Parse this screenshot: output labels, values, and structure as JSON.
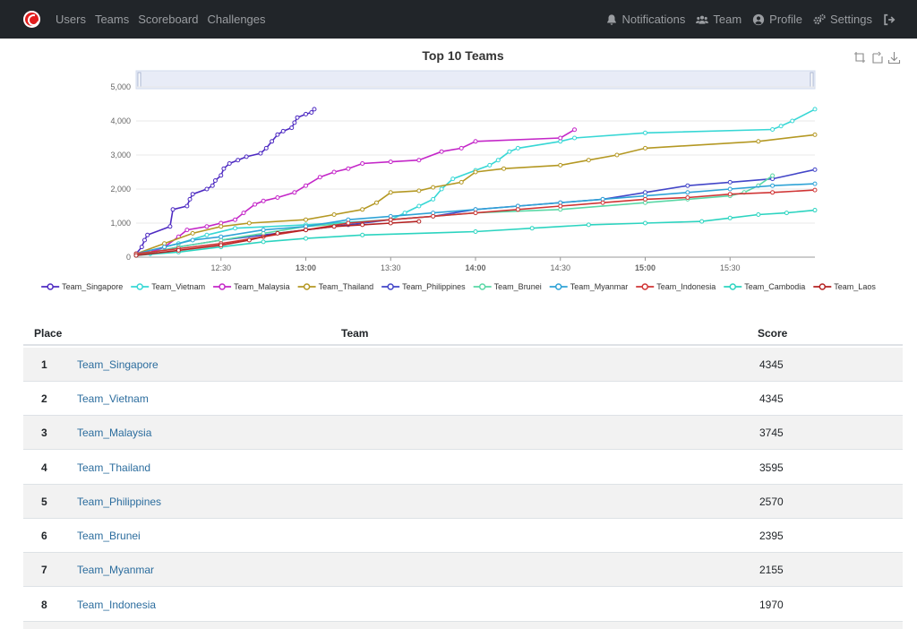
{
  "nav": {
    "left": [
      "Users",
      "Teams",
      "Scoreboard",
      "Challenges"
    ],
    "notifications": "Notifications",
    "team": "Team",
    "profile": "Profile",
    "settings": "Settings"
  },
  "colors": {
    "navbar": "#212529",
    "brand": "#e31d1d",
    "link": "#2c6d9e"
  },
  "chart_data": {
    "type": "line",
    "title": "Top 10 Teams",
    "x_axis": {
      "ticks": [
        "12:30",
        "13:00",
        "13:30",
        "14:00",
        "14:30",
        "15:00",
        "15:30"
      ],
      "range": [
        "12:00",
        "16:00"
      ]
    },
    "y_axis": {
      "ticks": [
        "0",
        "1,000",
        "2,000",
        "3,000",
        "4,000",
        "5,000"
      ],
      "range": [
        0,
        5000
      ]
    },
    "grid": "horizontal",
    "legend_position": "bottom",
    "datazoom_slider": true,
    "series": [
      {
        "name": "Team_Singapore",
        "color": "#4e2bc2",
        "points": [
          [
            "12:00",
            100
          ],
          [
            "12:02",
            300
          ],
          [
            "12:03",
            500
          ],
          [
            "12:04",
            650
          ],
          [
            "12:12",
            900
          ],
          [
            "12:13",
            1400
          ],
          [
            "12:18",
            1500
          ],
          [
            "12:19",
            1700
          ],
          [
            "12:20",
            1850
          ],
          [
            "12:25",
            2000
          ],
          [
            "12:27",
            2100
          ],
          [
            "12:28",
            2250
          ],
          [
            "12:30",
            2400
          ],
          [
            "12:31",
            2600
          ],
          [
            "12:33",
            2750
          ],
          [
            "12:36",
            2850
          ],
          [
            "12:39",
            2950
          ],
          [
            "12:44",
            3050
          ],
          [
            "12:46",
            3200
          ],
          [
            "12:48",
            3400
          ],
          [
            "12:50",
            3600
          ],
          [
            "12:52",
            3700
          ],
          [
            "12:55",
            3800
          ],
          [
            "12:56",
            3950
          ],
          [
            "12:57",
            4100
          ],
          [
            "13:00",
            4200
          ],
          [
            "13:02",
            4250
          ],
          [
            "13:03",
            4345
          ]
        ]
      },
      {
        "name": "Team_Vietnam",
        "color": "#37d7d5",
        "points": [
          [
            "12:00",
            50
          ],
          [
            "12:05",
            100
          ],
          [
            "12:10",
            300
          ],
          [
            "12:15",
            400
          ],
          [
            "12:25",
            650
          ],
          [
            "12:35",
            850
          ],
          [
            "13:00",
            950
          ],
          [
            "13:30",
            1100
          ],
          [
            "13:35",
            1300
          ],
          [
            "13:40",
            1500
          ],
          [
            "13:45",
            1700
          ],
          [
            "13:48",
            2000
          ],
          [
            "13:52",
            2300
          ],
          [
            "14:00",
            2550
          ],
          [
            "14:05",
            2700
          ],
          [
            "14:08",
            2850
          ],
          [
            "14:12",
            3100
          ],
          [
            "14:15",
            3200
          ],
          [
            "14:30",
            3400
          ],
          [
            "14:35",
            3500
          ],
          [
            "15:00",
            3650
          ],
          [
            "15:45",
            3750
          ],
          [
            "15:48",
            3850
          ],
          [
            "15:52",
            4000
          ],
          [
            "16:00",
            4345
          ]
        ]
      },
      {
        "name": "Team_Malaysia",
        "color": "#c427c8",
        "points": [
          [
            "12:00",
            100
          ],
          [
            "12:05",
            150
          ],
          [
            "12:10",
            300
          ],
          [
            "12:15",
            600
          ],
          [
            "12:18",
            800
          ],
          [
            "12:25",
            900
          ],
          [
            "12:30",
            1000
          ],
          [
            "12:35",
            1100
          ],
          [
            "12:38",
            1300
          ],
          [
            "12:42",
            1550
          ],
          [
            "12:45",
            1650
          ],
          [
            "12:50",
            1750
          ],
          [
            "12:56",
            1900
          ],
          [
            "13:00",
            2100
          ],
          [
            "13:05",
            2350
          ],
          [
            "13:10",
            2500
          ],
          [
            "13:15",
            2600
          ],
          [
            "13:20",
            2750
          ],
          [
            "13:30",
            2800
          ],
          [
            "13:40",
            2850
          ],
          [
            "13:48",
            3100
          ],
          [
            "13:55",
            3200
          ],
          [
            "14:00",
            3400
          ],
          [
            "14:30",
            3500
          ],
          [
            "14:35",
            3745
          ]
        ]
      },
      {
        "name": "Team_Thailand",
        "color": "#b49823",
        "points": [
          [
            "12:00",
            100
          ],
          [
            "12:10",
            400
          ],
          [
            "12:20",
            700
          ],
          [
            "12:30",
            900
          ],
          [
            "12:40",
            1000
          ],
          [
            "13:00",
            1100
          ],
          [
            "13:10",
            1250
          ],
          [
            "13:20",
            1400
          ],
          [
            "13:25",
            1600
          ],
          [
            "13:30",
            1900
          ],
          [
            "13:40",
            1950
          ],
          [
            "13:45",
            2050
          ],
          [
            "13:55",
            2200
          ],
          [
            "14:00",
            2500
          ],
          [
            "14:10",
            2600
          ],
          [
            "14:30",
            2700
          ],
          [
            "14:40",
            2850
          ],
          [
            "14:50",
            3000
          ],
          [
            "15:00",
            3200
          ],
          [
            "15:40",
            3400
          ],
          [
            "16:00",
            3595
          ]
        ]
      },
      {
        "name": "Team_Philippines",
        "color": "#4346c8",
        "points": [
          [
            "12:00",
            50
          ],
          [
            "12:15",
            300
          ],
          [
            "12:30",
            500
          ],
          [
            "12:45",
            650
          ],
          [
            "13:00",
            800
          ],
          [
            "13:15",
            950
          ],
          [
            "13:30",
            1100
          ],
          [
            "13:45",
            1200
          ],
          [
            "14:00",
            1400
          ],
          [
            "14:15",
            1500
          ],
          [
            "14:30",
            1600
          ],
          [
            "14:45",
            1700
          ],
          [
            "15:00",
            1900
          ],
          [
            "15:15",
            2100
          ],
          [
            "15:30",
            2200
          ],
          [
            "15:45",
            2300
          ],
          [
            "16:00",
            2570
          ]
        ]
      },
      {
        "name": "Team_Brunei",
        "color": "#5ad8a6",
        "points": [
          [
            "12:00",
            50
          ],
          [
            "12:15",
            300
          ],
          [
            "12:30",
            500
          ],
          [
            "12:45",
            700
          ],
          [
            "13:00",
            900
          ],
          [
            "13:15",
            1000
          ],
          [
            "13:30",
            1100
          ],
          [
            "13:45",
            1200
          ],
          [
            "14:00",
            1300
          ],
          [
            "14:30",
            1400
          ],
          [
            "15:00",
            1600
          ],
          [
            "15:15",
            1700
          ],
          [
            "15:30",
            1800
          ],
          [
            "15:35",
            1900
          ],
          [
            "15:40",
            2100
          ],
          [
            "15:45",
            2395
          ]
        ]
      },
      {
        "name": "Team_Myanmar",
        "color": "#2fa3d6",
        "points": [
          [
            "12:00",
            100
          ],
          [
            "12:10",
            300
          ],
          [
            "12:20",
            500
          ],
          [
            "12:30",
            600
          ],
          [
            "12:45",
            800
          ],
          [
            "13:00",
            900
          ],
          [
            "13:15",
            1100
          ],
          [
            "13:30",
            1200
          ],
          [
            "13:45",
            1300
          ],
          [
            "14:00",
            1400
          ],
          [
            "14:15",
            1500
          ],
          [
            "14:30",
            1600
          ],
          [
            "14:45",
            1700
          ],
          [
            "15:00",
            1800
          ],
          [
            "15:15",
            1900
          ],
          [
            "15:30",
            2000
          ],
          [
            "15:45",
            2100
          ],
          [
            "16:00",
            2155
          ]
        ]
      },
      {
        "name": "Team_Indonesia",
        "color": "#d03535",
        "points": [
          [
            "12:00",
            100
          ],
          [
            "12:15",
            250
          ],
          [
            "12:30",
            400
          ],
          [
            "12:45",
            600
          ],
          [
            "13:00",
            800
          ],
          [
            "13:15",
            1000
          ],
          [
            "13:30",
            1100
          ],
          [
            "13:45",
            1200
          ],
          [
            "14:00",
            1300
          ],
          [
            "14:15",
            1400
          ],
          [
            "14:30",
            1500
          ],
          [
            "14:45",
            1600
          ],
          [
            "15:00",
            1700
          ],
          [
            "15:15",
            1750
          ],
          [
            "15:30",
            1850
          ],
          [
            "15:45",
            1900
          ],
          [
            "16:00",
            1970
          ]
        ]
      },
      {
        "name": "Team_Cambodia",
        "color": "#2cd4c0",
        "points": [
          [
            "12:00",
            50
          ],
          [
            "12:15",
            150
          ],
          [
            "12:30",
            300
          ],
          [
            "12:45",
            450
          ],
          [
            "13:00",
            550
          ],
          [
            "13:20",
            650
          ],
          [
            "14:00",
            750
          ],
          [
            "14:20",
            850
          ],
          [
            "14:40",
            950
          ],
          [
            "15:00",
            1000
          ],
          [
            "15:20",
            1050
          ],
          [
            "15:30",
            1150
          ],
          [
            "15:40",
            1250
          ],
          [
            "15:50",
            1300
          ],
          [
            "16:00",
            1380
          ]
        ]
      },
      {
        "name": "Team_Laos",
        "color": "#b52323",
        "points": [
          [
            "12:00",
            50
          ],
          [
            "12:15",
            200
          ],
          [
            "12:30",
            350
          ],
          [
            "12:40",
            500
          ],
          [
            "12:50",
            700
          ],
          [
            "13:00",
            800
          ],
          [
            "13:10",
            900
          ],
          [
            "13:20",
            950
          ],
          [
            "13:30",
            1000
          ],
          [
            "13:40",
            1050
          ]
        ]
      }
    ]
  },
  "table": {
    "headers": {
      "place": "Place",
      "team": "Team",
      "score": "Score"
    },
    "rows": [
      {
        "place": "1",
        "team": "Team_Singapore",
        "score": "4345"
      },
      {
        "place": "2",
        "team": "Team_Vietnam",
        "score": "4345"
      },
      {
        "place": "3",
        "team": "Team_Malaysia",
        "score": "3745"
      },
      {
        "place": "4",
        "team": "Team_Thailand",
        "score": "3595"
      },
      {
        "place": "5",
        "team": "Team_Philippines",
        "score": "2570"
      },
      {
        "place": "6",
        "team": "Team_Brunei",
        "score": "2395"
      },
      {
        "place": "7",
        "team": "Team_Myanmar",
        "score": "2155"
      },
      {
        "place": "8",
        "team": "Team_Indonesia",
        "score": "1970"
      }
    ]
  }
}
